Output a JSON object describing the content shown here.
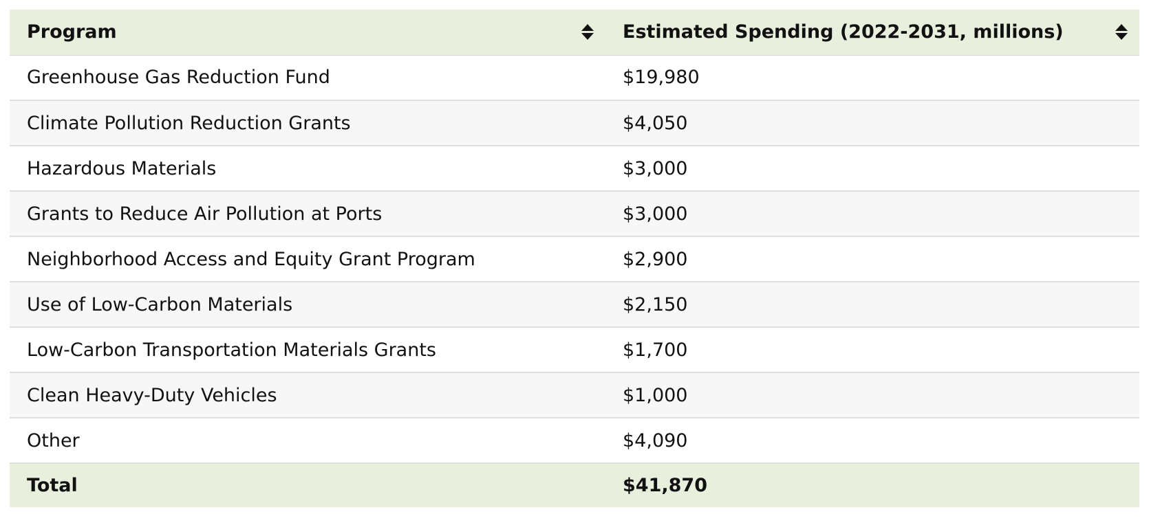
{
  "table": {
    "headers": {
      "program": "Program",
      "spending": "Estimated Spending (2022-2031, millions)"
    },
    "icons": {
      "sort": "sort-icon"
    },
    "colors": {
      "header_bg": "#e8efdc",
      "row_alt_bg": "#f7f7f7",
      "text": "#111111"
    },
    "rows": [
      {
        "program": "Greenhouse Gas Reduction Fund",
        "spending": "$19,980"
      },
      {
        "program": "Climate Pollution Reduction Grants",
        "spending": "$4,050"
      },
      {
        "program": "Hazardous Materials",
        "spending": "$3,000"
      },
      {
        "program": "Grants to Reduce Air Pollution at Ports",
        "spending": "$3,000"
      },
      {
        "program": "Neighborhood Access and Equity Grant Program",
        "spending": "$2,900"
      },
      {
        "program": "Use of Low-Carbon Materials",
        "spending": "$2,150"
      },
      {
        "program": "Low-Carbon Transportation Materials Grants",
        "spending": "$1,700"
      },
      {
        "program": "Clean Heavy-Duty Vehicles",
        "spending": "$1,000"
      },
      {
        "program": "Other",
        "spending": "$4,090"
      }
    ],
    "total": {
      "label": "Total",
      "value": "$41,870"
    }
  }
}
